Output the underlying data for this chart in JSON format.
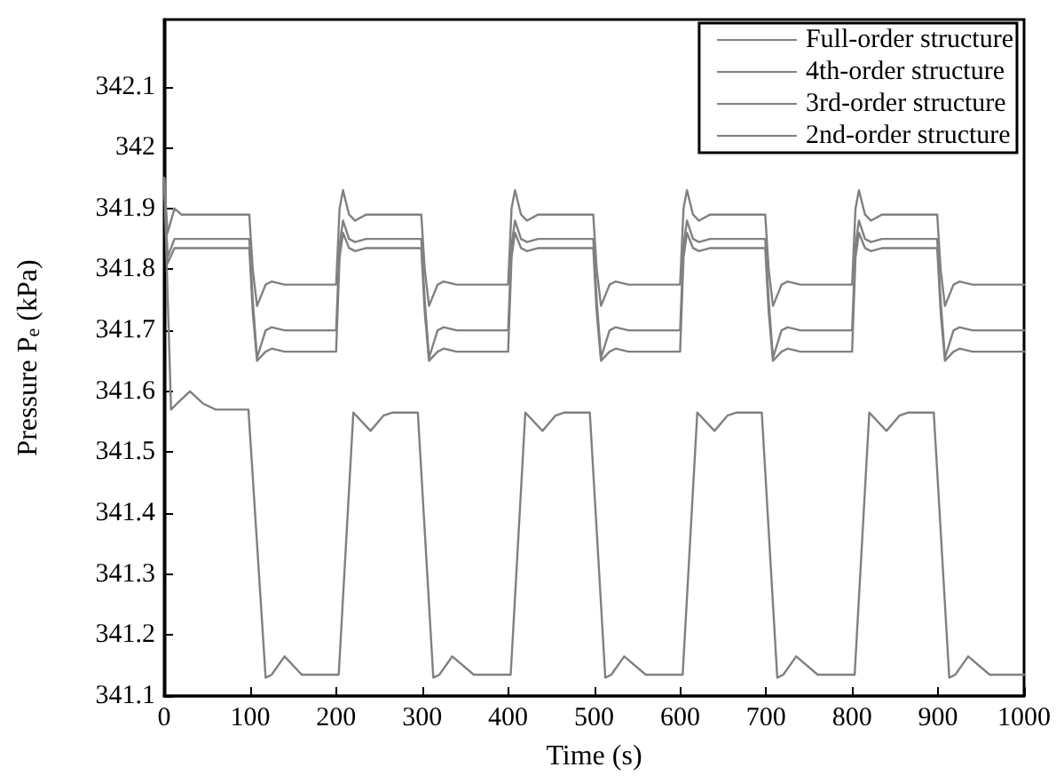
{
  "chart_data": {
    "type": "line",
    "xlabel": "Time (s)",
    "ylabel": "Pressure P$_{e}$ (kPa)",
    "xlim": [
      0,
      1000
    ],
    "xticks": [
      0,
      100,
      200,
      300,
      400,
      500,
      600,
      700,
      800,
      900,
      1000
    ],
    "ylim": [
      341.1,
      342.21
    ],
    "yticks": [
      341.1,
      341.2,
      341.3,
      341.4,
      341.5,
      341.6,
      341.7,
      341.8,
      341.9,
      342,
      342.1
    ],
    "grid": false,
    "legend": "top right",
    "marker": "none",
    "line_style": "solid",
    "series": [
      {
        "name": "Full-order structure",
        "color": "#808080",
        "x": [
          0,
          4,
          12,
          20,
          99,
          103,
          108,
          118,
          125,
          140,
          200,
          204,
          208,
          215,
          222,
          235,
          299,
          303,
          308,
          318,
          325,
          340,
          400,
          404,
          408,
          415,
          422,
          435,
          499,
          503,
          508,
          518,
          525,
          540,
          600,
          604,
          608,
          615,
          622,
          635,
          699,
          703,
          708,
          718,
          725,
          740,
          800,
          804,
          808,
          815,
          822,
          835,
          899,
          903,
          908,
          918,
          925,
          940,
          1000
        ],
        "values": [
          341.95,
          341.86,
          341.9,
          341.89,
          341.89,
          341.8,
          341.74,
          341.775,
          341.78,
          341.775,
          341.775,
          341.9,
          341.93,
          341.89,
          341.88,
          341.89,
          341.89,
          341.8,
          341.74,
          341.775,
          341.78,
          341.775,
          341.775,
          341.9,
          341.93,
          341.89,
          341.88,
          341.89,
          341.89,
          341.8,
          341.74,
          341.775,
          341.78,
          341.775,
          341.775,
          341.9,
          341.93,
          341.89,
          341.88,
          341.89,
          341.89,
          341.8,
          341.74,
          341.775,
          341.78,
          341.775,
          341.775,
          341.9,
          341.93,
          341.89,
          341.88,
          341.89,
          341.89,
          341.8,
          341.74,
          341.775,
          341.78,
          341.775,
          341.775
        ]
      },
      {
        "name": "4th-order structure",
        "color": "#808080",
        "x": [
          0,
          4,
          12,
          20,
          99,
          103,
          108,
          118,
          125,
          140,
          200,
          204,
          208,
          215,
          222,
          235,
          299,
          303,
          308,
          318,
          325,
          340,
          400,
          404,
          408,
          415,
          422,
          435,
          499,
          503,
          508,
          518,
          525,
          540,
          600,
          604,
          608,
          615,
          622,
          635,
          699,
          703,
          708,
          718,
          725,
          740,
          800,
          804,
          808,
          815,
          822,
          835,
          899,
          903,
          908,
          918,
          925,
          940,
          1000
        ],
        "values": [
          341.95,
          341.82,
          341.85,
          341.85,
          341.85,
          341.75,
          341.655,
          341.7,
          341.705,
          341.7,
          341.7,
          341.84,
          341.88,
          341.85,
          341.845,
          341.85,
          341.85,
          341.75,
          341.655,
          341.7,
          341.705,
          341.7,
          341.7,
          341.84,
          341.88,
          341.85,
          341.845,
          341.85,
          341.85,
          341.75,
          341.655,
          341.7,
          341.705,
          341.7,
          341.7,
          341.84,
          341.88,
          341.85,
          341.845,
          341.85,
          341.85,
          341.75,
          341.655,
          341.7,
          341.705,
          341.7,
          341.7,
          341.84,
          341.88,
          341.85,
          341.845,
          341.85,
          341.85,
          341.75,
          341.655,
          341.7,
          341.705,
          341.7,
          341.7
        ]
      },
      {
        "name": "3rd-order structure",
        "color": "#808080",
        "x": [
          0,
          4,
          12,
          20,
          99,
          103,
          108,
          118,
          125,
          140,
          200,
          204,
          208,
          215,
          222,
          235,
          299,
          303,
          308,
          318,
          325,
          340,
          400,
          404,
          408,
          415,
          422,
          435,
          499,
          503,
          508,
          518,
          525,
          540,
          600,
          604,
          608,
          615,
          622,
          635,
          699,
          703,
          708,
          718,
          725,
          740,
          800,
          804,
          808,
          815,
          822,
          835,
          899,
          903,
          908,
          918,
          925,
          940,
          1000
        ],
        "values": [
          341.95,
          341.81,
          341.835,
          341.835,
          341.835,
          341.73,
          341.65,
          341.665,
          341.67,
          341.665,
          341.665,
          341.82,
          341.86,
          341.835,
          341.83,
          341.835,
          341.835,
          341.73,
          341.65,
          341.665,
          341.67,
          341.665,
          341.665,
          341.82,
          341.86,
          341.835,
          341.83,
          341.835,
          341.835,
          341.73,
          341.65,
          341.665,
          341.67,
          341.665,
          341.665,
          341.82,
          341.86,
          341.835,
          341.83,
          341.835,
          341.835,
          341.73,
          341.65,
          341.665,
          341.67,
          341.665,
          341.665,
          341.82,
          341.86,
          341.835,
          341.83,
          341.835,
          341.835,
          341.73,
          341.65,
          341.665,
          341.67,
          341.665,
          341.665
        ]
      },
      {
        "name": "2nd-order structure",
        "color": "#808080",
        "x": [
          0,
          8,
          15,
          30,
          45,
          60,
          98,
          118,
          125,
          140,
          160,
          203,
          220,
          240,
          255,
          265,
          295,
          313,
          320,
          335,
          360,
          403,
          420,
          440,
          455,
          465,
          495,
          513,
          520,
          535,
          560,
          603,
          620,
          640,
          655,
          665,
          695,
          713,
          720,
          735,
          760,
          803,
          820,
          840,
          855,
          865,
          895,
          913,
          920,
          935,
          960,
          1000
        ],
        "values": [
          341.95,
          341.57,
          341.58,
          341.6,
          341.58,
          341.57,
          341.57,
          341.13,
          341.135,
          341.165,
          341.135,
          341.135,
          341.565,
          341.535,
          341.56,
          341.565,
          341.565,
          341.13,
          341.135,
          341.165,
          341.135,
          341.135,
          341.565,
          341.535,
          341.56,
          341.565,
          341.565,
          341.13,
          341.135,
          341.165,
          341.135,
          341.135,
          341.565,
          341.535,
          341.56,
          341.565,
          341.565,
          341.13,
          341.135,
          341.165,
          341.135,
          341.135,
          341.565,
          341.535,
          341.56,
          341.565,
          341.565,
          341.13,
          341.135,
          341.165,
          341.135,
          341.135
        ]
      }
    ]
  }
}
